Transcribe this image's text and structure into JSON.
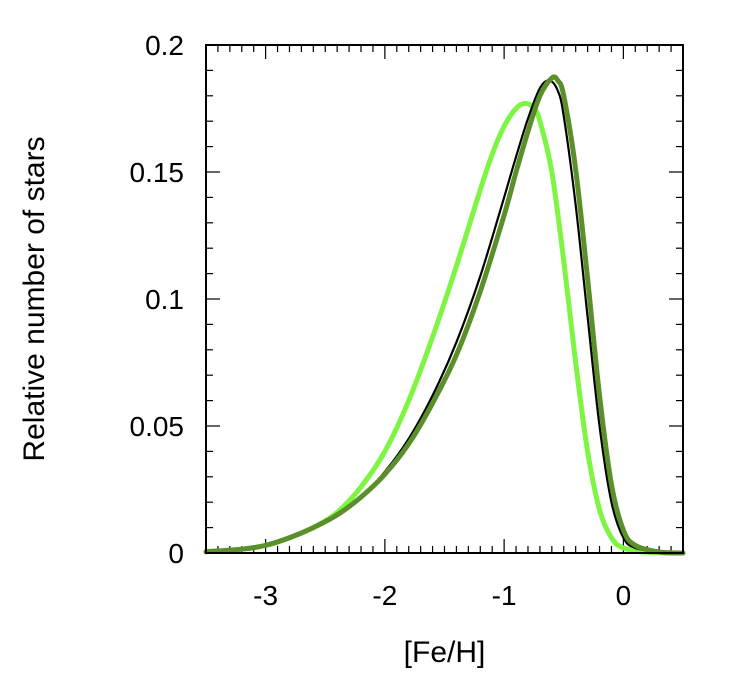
{
  "chart_data": {
    "type": "line",
    "xlabel": "[Fe/H]",
    "ylabel": "Relative number of stars",
    "xlim": [
      -3.5,
      0.5
    ],
    "ylim": [
      0,
      0.2
    ],
    "x_ticks": [
      -3,
      -2,
      -1,
      0
    ],
    "x_tick_labels": [
      "-3",
      "-2",
      "-1",
      "0"
    ],
    "y_ticks": [
      0,
      0.05,
      0.1,
      0.15,
      0.2
    ],
    "y_tick_labels": [
      "0",
      "0.05",
      "0.1",
      "0.15",
      "0.2"
    ],
    "grid": false,
    "legend": "none",
    "series": [
      {
        "color": "#7ef542",
        "stroke": "thick",
        "x": [
          -3.5,
          -3.2,
          -3.0,
          -2.8,
          -2.6,
          -2.4,
          -2.2,
          -2.0,
          -1.8,
          -1.6,
          -1.4,
          -1.2,
          -1.1,
          -1.0,
          -0.9,
          -0.82,
          -0.75,
          -0.7,
          -0.6,
          -0.5,
          -0.4,
          -0.3,
          -0.2,
          -0.1,
          0.0,
          0.2,
          0.5
        ],
        "y": [
          0.0005,
          0.0015,
          0.003,
          0.006,
          0.01,
          0.016,
          0.026,
          0.04,
          0.06,
          0.085,
          0.113,
          0.143,
          0.157,
          0.168,
          0.175,
          0.177,
          0.175,
          0.17,
          0.15,
          0.115,
          0.075,
          0.04,
          0.017,
          0.006,
          0.002,
          0.0003,
          0.0
        ]
      },
      {
        "color": "#000000",
        "stroke": "thin",
        "x": [
          -3.5,
          -3.2,
          -3.0,
          -2.8,
          -2.6,
          -2.4,
          -2.2,
          -2.0,
          -1.8,
          -1.6,
          -1.4,
          -1.2,
          -1.0,
          -0.9,
          -0.8,
          -0.7,
          -0.62,
          -0.55,
          -0.5,
          -0.4,
          -0.3,
          -0.2,
          -0.1,
          0.0,
          0.1,
          0.3,
          0.5
        ],
        "y": [
          0.0005,
          0.0015,
          0.003,
          0.006,
          0.01,
          0.015,
          0.022,
          0.032,
          0.045,
          0.062,
          0.083,
          0.109,
          0.14,
          0.156,
          0.171,
          0.183,
          0.186,
          0.182,
          0.172,
          0.137,
          0.093,
          0.05,
          0.02,
          0.006,
          0.002,
          0.0003,
          0.0
        ]
      },
      {
        "color": "#5a8f2a",
        "stroke": "thick",
        "x": [
          -3.5,
          -3.2,
          -3.0,
          -2.8,
          -2.6,
          -2.4,
          -2.2,
          -2.0,
          -1.8,
          -1.6,
          -1.4,
          -1.2,
          -1.0,
          -0.9,
          -0.8,
          -0.7,
          -0.6,
          -0.55,
          -0.5,
          -0.4,
          -0.3,
          -0.2,
          -0.1,
          0.0,
          0.1,
          0.3,
          0.5
        ],
        "y": [
          0.0005,
          0.0015,
          0.003,
          0.006,
          0.01,
          0.015,
          0.022,
          0.031,
          0.043,
          0.059,
          0.078,
          0.103,
          0.133,
          0.15,
          0.166,
          0.18,
          0.187,
          0.186,
          0.18,
          0.151,
          0.108,
          0.062,
          0.027,
          0.009,
          0.003,
          0.0004,
          0.0
        ]
      }
    ]
  }
}
